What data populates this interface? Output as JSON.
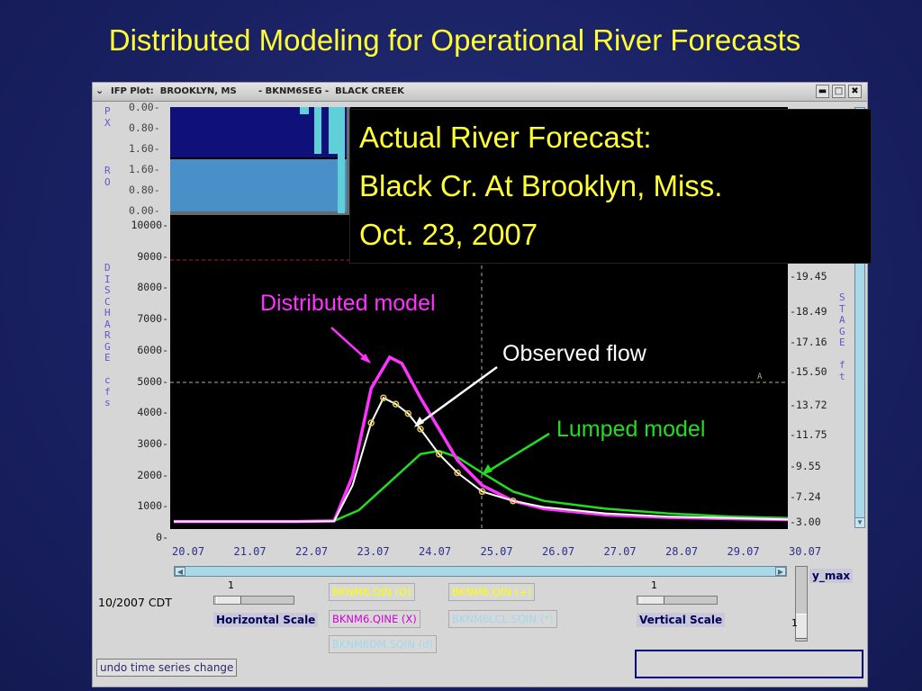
{
  "slide": {
    "title": "Distributed Modeling for Operational River Forecasts"
  },
  "window": {
    "title": "IFP Plot:  BROOKLYN, MS       - BKNM6SEG -  BLACK CREEK",
    "menu_icon": "chevron-down-icon",
    "controls": {
      "minimize": "▬",
      "maximize": "□",
      "close": "✖"
    }
  },
  "callout": {
    "line1": "Actual River Forecast:",
    "line2": "Black Cr. At Brooklyn, Miss.",
    "line3": "Oct. 23, 2007"
  },
  "annotations": {
    "distributed": "Distributed model",
    "observed": "Observed flow",
    "lumped": "Lumped model"
  },
  "axes": {
    "px_label": "P\nX",
    "ro_label": "R\nO",
    "discharge_label": "D\nI\nS\nC\nH\nA\nR\nG\nE\n\nc\nf\ns",
    "stage_label": "S\nT\nA\nG\nE\n\nf\nt",
    "top_ticks": [
      "0.00",
      "0.80",
      "1.60",
      "1.60",
      "0.80",
      "0.00"
    ],
    "discharge_ticks": [
      "10000",
      "9000",
      "8000",
      "7000",
      "6000",
      "5000",
      "4000",
      "3000",
      "2000",
      "1000",
      "0"
    ],
    "stage_ticks": [
      "19.45",
      "18.49",
      "17.16",
      "15.50",
      "13.72",
      "11.75",
      "9.55",
      "7.24",
      "3.00"
    ],
    "x_ticks": [
      "20.07",
      "21.07",
      "22.07",
      "23.07",
      "24.07",
      "25.07",
      "26.07",
      "27.07",
      "28.07",
      "29.07",
      "30.07"
    ]
  },
  "controls": {
    "datetime": "10/2007 CDT",
    "horizontal_value": "1",
    "horizontal_label": "Horizontal Scale",
    "vertical_value": "1",
    "vertical_label": "Vertical Scale",
    "ymax_label": "y_max",
    "ymax_value": "1",
    "undo_label": "undo time series change"
  },
  "timeseries_buttons": [
    {
      "label": "BKNM6.QIN  (O)",
      "color": "#ffff00"
    },
    {
      "label": "BKNM6.QIN  (+)",
      "color": "#ffff00"
    },
    {
      "label": "BKNM6.QINE (X)",
      "color": "#d000d0"
    },
    {
      "label": "BKNM6LCL.SQIN (*)",
      "color": "#9fd8ec"
    },
    {
      "label": "BKNM6DM.SQIN (d)",
      "color": "#9fd8ec"
    }
  ],
  "colors": {
    "distributed": "#ff33ff",
    "observed": "#ffffff",
    "lumped": "#22dd22",
    "title": "#ffff33"
  }
}
